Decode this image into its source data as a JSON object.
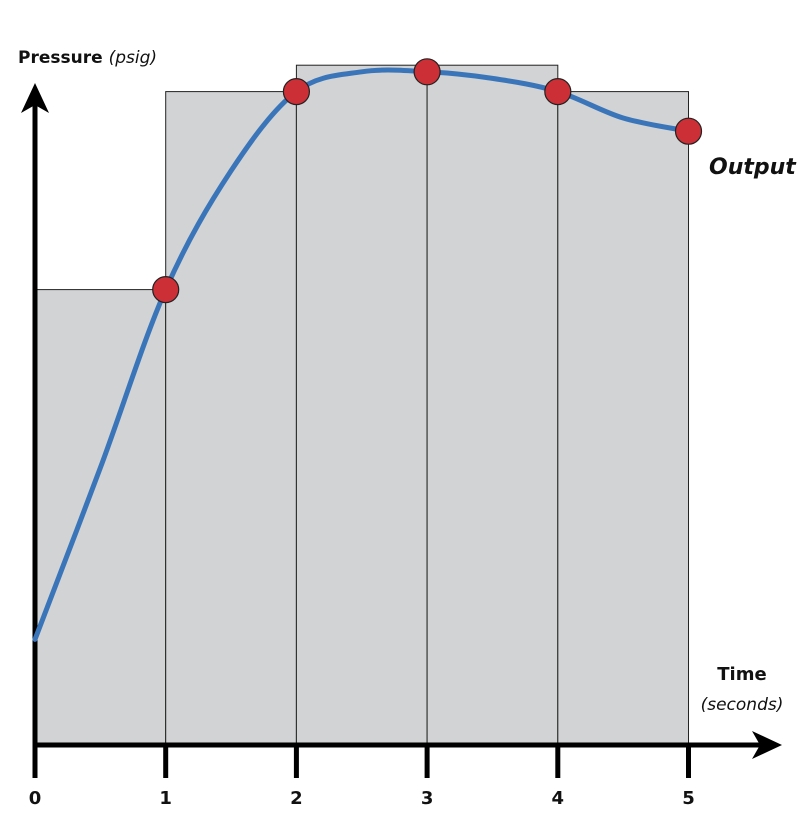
{
  "chart_data": {
    "type": "line",
    "y_label": "Pressure",
    "y_label_unit": "(psig)",
    "x_label": "Time",
    "x_label_unit": "(seconds)",
    "xlim": [
      0,
      5.7
    ],
    "ylim": [
      0,
      100
    ],
    "xticks": [
      0,
      1,
      2,
      3,
      4,
      5
    ],
    "bars": {
      "bins": [
        0,
        1,
        2,
        3,
        4,
        5
      ],
      "values": [
        69,
        99,
        103,
        103,
        99
      ],
      "color": "#d1d3d4"
    },
    "series": [
      {
        "name": "Output",
        "color": "#3a75ba",
        "x": [
          0,
          0.5,
          1,
          1.5,
          2,
          2.5,
          3,
          3.5,
          4,
          4.5,
          5
        ],
        "values": [
          16,
          42,
          69,
          87,
          99,
          102,
          102,
          101,
          99,
          95,
          93
        ]
      },
      {
        "name": null,
        "color": "#cc2f36",
        "x": [
          1,
          2,
          3,
          4,
          5
        ],
        "values": [
          69,
          99,
          102,
          99,
          93
        ]
      }
    ]
  }
}
